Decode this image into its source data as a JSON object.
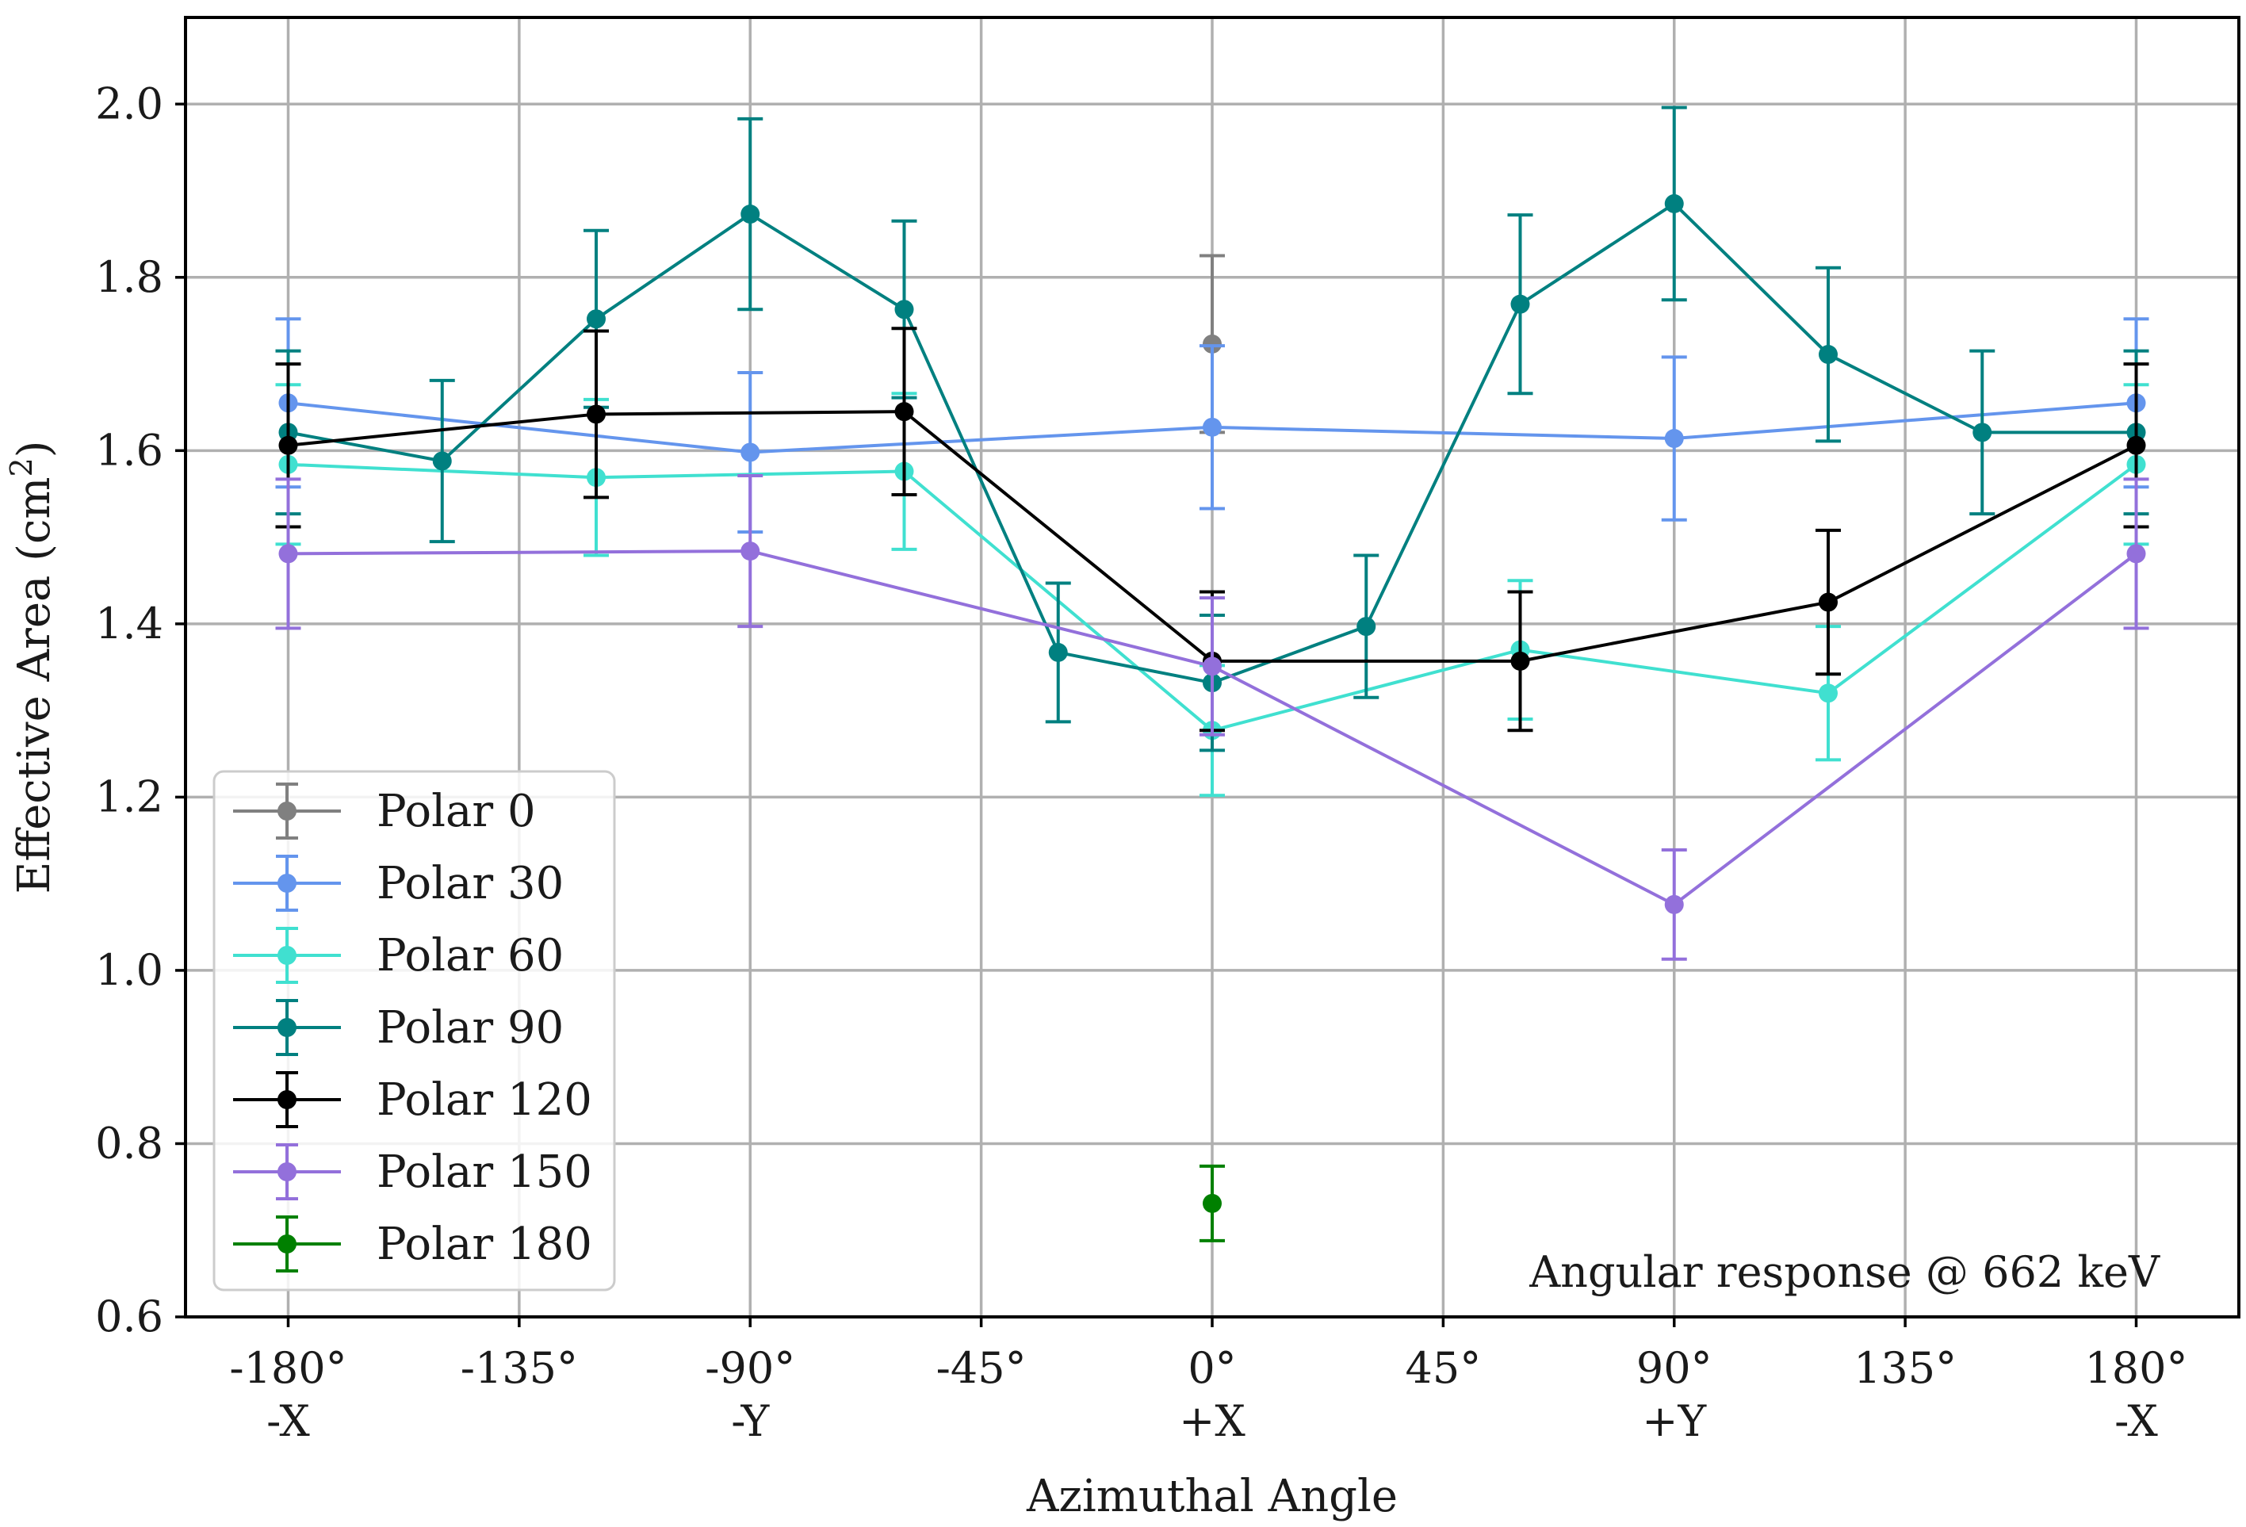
{
  "chart_data": {
    "type": "line",
    "title": "",
    "xlabel": "Azimuthal Angle",
    "ylabel": "Effective Area (cm²)",
    "ylabel_parts": {
      "base": "Effective Area (cm",
      "sup": "2",
      "close": ")"
    },
    "xlim": [
      -200,
      200
    ],
    "ylim": [
      0.6,
      2.1
    ],
    "grid": true,
    "legend_position": "bottom-left",
    "x_ticks": [
      {
        "value": -180,
        "label": "-180°",
        "sublabel": "-X"
      },
      {
        "value": -135,
        "label": "-135°",
        "sublabel": ""
      },
      {
        "value": -90,
        "label": "-90°",
        "sublabel": "-Y"
      },
      {
        "value": -45,
        "label": "-45°",
        "sublabel": ""
      },
      {
        "value": 0,
        "label": "0°",
        "sublabel": "+X"
      },
      {
        "value": 45,
        "label": "45°",
        "sublabel": ""
      },
      {
        "value": 90,
        "label": "90°",
        "sublabel": "+Y"
      },
      {
        "value": 135,
        "label": "135°",
        "sublabel": ""
      },
      {
        "value": 180,
        "label": "180°",
        "sublabel": "-X"
      }
    ],
    "y_ticks": [
      {
        "value": 0.6,
        "label": "0.6"
      },
      {
        "value": 0.8,
        "label": "0.8"
      },
      {
        "value": 1.0,
        "label": "1.0"
      },
      {
        "value": 1.2,
        "label": "1.2"
      },
      {
        "value": 1.4,
        "label": "1.4"
      },
      {
        "value": 1.6,
        "label": "1.6"
      },
      {
        "value": 1.8,
        "label": "1.8"
      },
      {
        "value": 2.0,
        "label": "2.0"
      }
    ],
    "annotation": "Angular response @ 662 keV",
    "series": [
      {
        "name": "Polar 0",
        "color": "#808080",
        "x": [
          0
        ],
        "y": [
          1.723
        ],
        "err": [
          0.102
        ]
      },
      {
        "name": "Polar 30",
        "color": "#6495ed",
        "x": [
          -180,
          -90,
          0,
          90,
          180
        ],
        "y": [
          1.655,
          1.598,
          1.627,
          1.614,
          1.655
        ],
        "err": [
          0.097,
          0.092,
          0.094,
          0.094,
          0.097
        ]
      },
      {
        "name": "Polar 60",
        "color": "#40e0d0",
        "x": [
          -180,
          -120,
          -60,
          0,
          60,
          120,
          180
        ],
        "y": [
          1.584,
          1.569,
          1.576,
          1.277,
          1.37,
          1.32,
          1.584
        ],
        "err": [
          0.092,
          0.09,
          0.09,
          0.075,
          0.08,
          0.077,
          0.092
        ]
      },
      {
        "name": "Polar 90",
        "color": "#008080",
        "x": [
          -180,
          -150,
          -120,
          -90,
          -60,
          -30,
          0,
          30,
          60,
          90,
          120,
          150,
          180
        ],
        "y": [
          1.621,
          1.588,
          1.752,
          1.873,
          1.763,
          1.367,
          1.332,
          1.397,
          1.769,
          1.885,
          1.711,
          1.621,
          1.621
        ],
        "err": [
          0.094,
          0.093,
          0.102,
          0.11,
          0.102,
          0.08,
          0.078,
          0.082,
          0.103,
          0.111,
          0.1,
          0.094,
          0.094
        ]
      },
      {
        "name": "Polar 120",
        "color": "#000000",
        "x": [
          -180,
          -120,
          -60,
          0,
          60,
          120,
          180
        ],
        "y": [
          1.606,
          1.642,
          1.645,
          1.357,
          1.357,
          1.425,
          1.606
        ],
        "err": [
          0.094,
          0.096,
          0.096,
          0.08,
          0.08,
          0.083,
          0.094
        ]
      },
      {
        "name": "Polar 150",
        "color": "#9370db",
        "x": [
          -180,
          -90,
          0,
          90,
          180
        ],
        "y": [
          1.481,
          1.484,
          1.351,
          1.076,
          1.481
        ],
        "err": [
          0.086,
          0.087,
          0.079,
          0.063,
          0.086
        ]
      },
      {
        "name": "Polar 180",
        "color": "#008000",
        "x": [
          0
        ],
        "y": [
          0.731
        ],
        "err": [
          0.043
        ]
      }
    ]
  }
}
